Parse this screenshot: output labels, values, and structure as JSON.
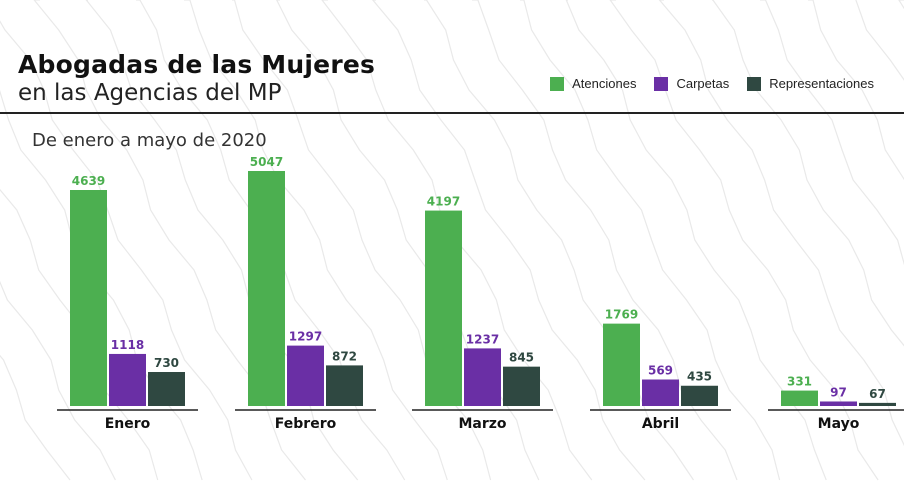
{
  "header": {
    "title": "Abogadas de las Mujeres",
    "subtitle": "en las Agencias del MP",
    "period": "De enero a mayo de 2020"
  },
  "colors": {
    "atenciones": "#4caf50",
    "carpetas": "#6a2fa5",
    "representaciones": "#2f4841",
    "background_pattern": "#e9e9e9"
  },
  "chart_data": {
    "type": "bar",
    "title": "Abogadas de las Mujeres en las Agencias del MP",
    "subtitle": "De enero a mayo de 2020",
    "categories": [
      "Enero",
      "Febrero",
      "Marzo",
      "Abril",
      "Mayo"
    ],
    "series": [
      {
        "name": "Atenciones",
        "color": "#4caf50",
        "values": [
          4639,
          5047,
          4197,
          1769,
          331
        ]
      },
      {
        "name": "Carpetas",
        "color": "#6a2fa5",
        "values": [
          1118,
          1297,
          1237,
          569,
          97
        ]
      },
      {
        "name": "Representaciones",
        "color": "#2f4841",
        "values": [
          730,
          872,
          845,
          435,
          67
        ]
      }
    ],
    "xlabel": "",
    "ylabel": "",
    "ylim": [
      0,
      5047
    ],
    "grid": false,
    "legend_position": "top-right",
    "data_labels": true
  }
}
